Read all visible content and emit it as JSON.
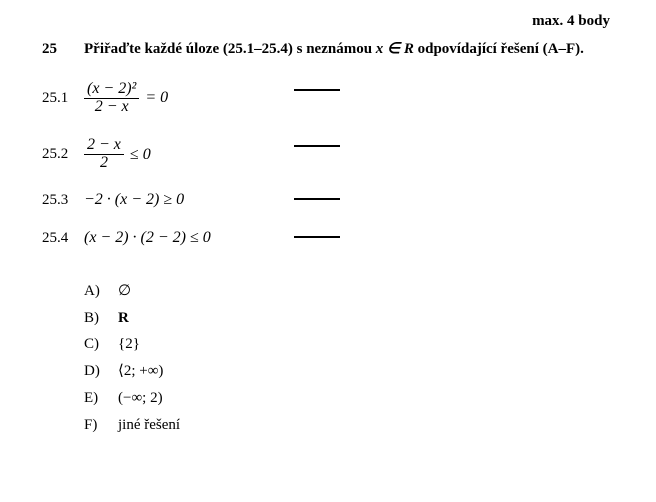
{
  "points_label": "max. 4 body",
  "question_number": "25",
  "question_text_1": "Přiřaďte každé úloze (25.1–25.4) s neznámou ",
  "question_var": "x ∈ R",
  "question_text_2": " odpovídající řešení (A–F).",
  "subs": {
    "s1": {
      "label": "25.1",
      "num": "(x − 2)²",
      "den": "2 − x",
      "tail": " = 0"
    },
    "s2": {
      "label": "25.2",
      "num": "2 − x",
      "den": "2",
      "tail": " ≤ 0"
    },
    "s3": {
      "label": "25.3",
      "expr": "−2 · (x − 2) ≥ 0"
    },
    "s4": {
      "label": "25.4",
      "expr": "(x − 2) · (2 − 2) ≤ 0"
    }
  },
  "options": {
    "A": {
      "label": "A)",
      "value": "∅"
    },
    "B": {
      "label": "B)",
      "value": "R"
    },
    "C": {
      "label": "C)",
      "value": "{2}"
    },
    "D": {
      "label": "D)",
      "value": "⟨2; +∞)"
    },
    "E": {
      "label": "E)",
      "value": "(−∞; 2)"
    },
    "F": {
      "label": "F)",
      "value": "jiné řešení"
    }
  }
}
